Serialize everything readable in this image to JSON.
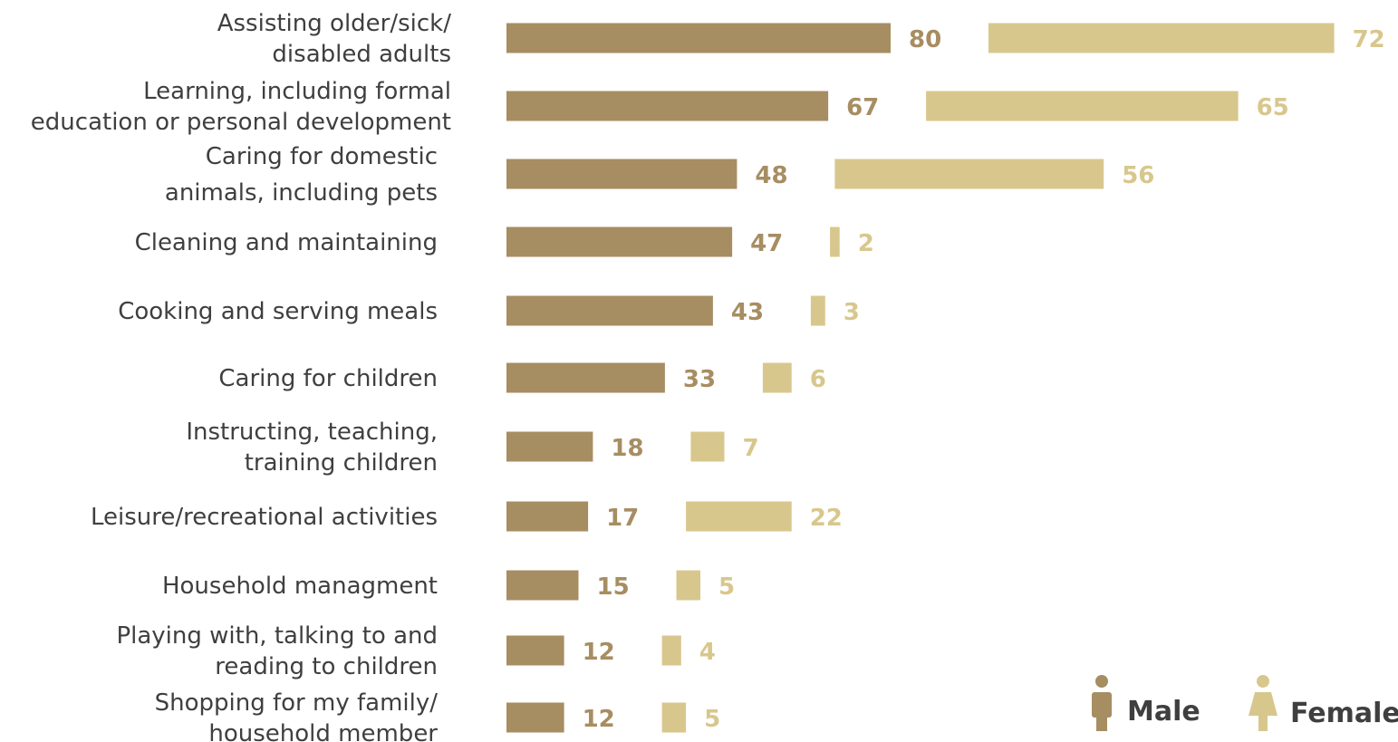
{
  "colors": {
    "male": "#a78d62",
    "female": "#d8c78d",
    "label": "#3f3f3f"
  },
  "legend": {
    "male_label": "Male",
    "female_label": "Female",
    "male_icon": "male-person-icon",
    "female_icon": "female-person-icon",
    "placement": "bottom-right"
  },
  "chart_data": {
    "type": "bar",
    "orientation": "horizontal",
    "title": "",
    "xlabel": "",
    "ylabel": "",
    "categories": [
      [
        "Assisting older/sick/",
        "disabled adults"
      ],
      [
        "Learning, including formal",
        "education or personal development"
      ],
      [
        "Caring for domestic",
        "animals, including pets"
      ],
      [
        "Cleaning and maintaining"
      ],
      [
        "Cooking and serving meals"
      ],
      [
        "Caring for children"
      ],
      [
        "Instructing, teaching,",
        "training children"
      ],
      [
        "Leisure/recreational activities"
      ],
      [
        "Household managment"
      ],
      [
        "Playing with, talking to and",
        "reading to children"
      ],
      [
        "Shopping for my family/",
        "household member"
      ]
    ],
    "series": [
      {
        "name": "Male",
        "values": [
          80,
          67,
          48,
          47,
          43,
          33,
          18,
          17,
          15,
          12,
          12
        ]
      },
      {
        "name": "Female",
        "values": [
          72,
          65,
          56,
          2,
          3,
          6,
          7,
          22,
          5,
          4,
          5
        ]
      }
    ],
    "grid": false,
    "legend_position": "bottom-right"
  }
}
